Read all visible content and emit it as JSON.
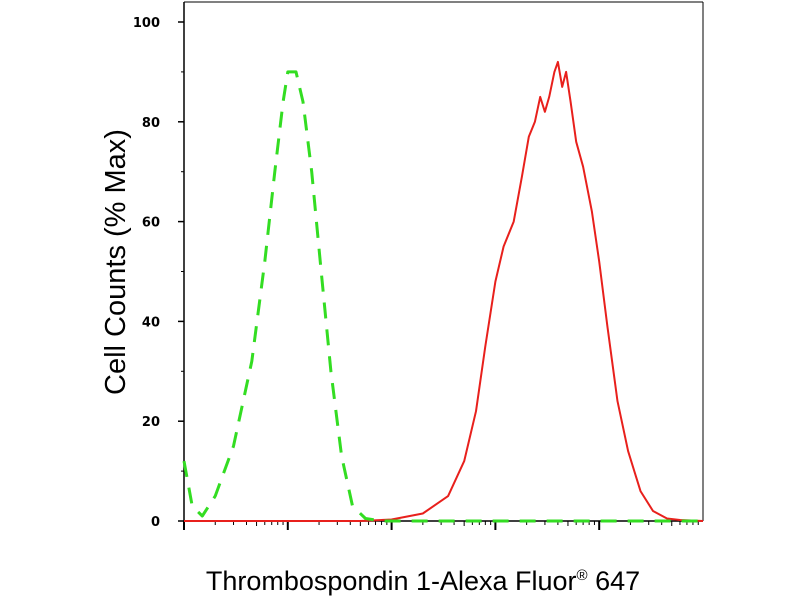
{
  "chart_data": {
    "type": "line",
    "title": "",
    "xlabel": "Thrombospondin 1-Alexa Fluor",
    "xlabel_mark": "®",
    "xlabel_suffix": " 647",
    "ylabel": "Cell Counts (% Max)",
    "ylim": [
      0,
      100
    ],
    "yticks": [
      "0",
      "20",
      "40",
      "60",
      "80",
      "100"
    ],
    "xscale": "log",
    "xlim": [
      10,
      1000000
    ],
    "grid": false,
    "legend": "none",
    "series": [
      {
        "color": "#e8201c",
        "style": "solid",
        "points": [
          [
            10,
            0
          ],
          [
            200,
            0
          ],
          [
            500,
            0
          ],
          [
            1000,
            0.3
          ],
          [
            2000,
            1.5
          ],
          [
            3500,
            5
          ],
          [
            5000,
            12
          ],
          [
            6500,
            22
          ],
          [
            8000,
            35
          ],
          [
            10000,
            48
          ],
          [
            12000,
            55
          ],
          [
            15000,
            60
          ],
          [
            18000,
            69
          ],
          [
            21000,
            77
          ],
          [
            24000,
            80
          ],
          [
            27000,
            85
          ],
          [
            30000,
            82
          ],
          [
            33000,
            85
          ],
          [
            37000,
            90
          ],
          [
            40000,
            92
          ],
          [
            44000,
            87
          ],
          [
            48000,
            90
          ],
          [
            53000,
            84
          ],
          [
            60000,
            76
          ],
          [
            70000,
            71
          ],
          [
            85000,
            62
          ],
          [
            100000,
            52
          ],
          [
            120000,
            39
          ],
          [
            150000,
            24
          ],
          [
            190000,
            14
          ],
          [
            250000,
            6
          ],
          [
            330000,
            2
          ],
          [
            450000,
            0.5
          ],
          [
            600000,
            0.2
          ],
          [
            1000000,
            0
          ]
        ]
      },
      {
        "color": "#33dd22",
        "style": "dashed",
        "points": [
          [
            10,
            12
          ],
          [
            12,
            3
          ],
          [
            15,
            1
          ],
          [
            20,
            5
          ],
          [
            30,
            15
          ],
          [
            45,
            32
          ],
          [
            60,
            52
          ],
          [
            75,
            70
          ],
          [
            90,
            84
          ],
          [
            100,
            90
          ],
          [
            120,
            90
          ],
          [
            140,
            84
          ],
          [
            170,
            70
          ],
          [
            210,
            50
          ],
          [
            260,
            30
          ],
          [
            330,
            13
          ],
          [
            420,
            3
          ],
          [
            560,
            0.5
          ],
          [
            800,
            0
          ],
          [
            1000000,
            0
          ]
        ]
      }
    ]
  }
}
